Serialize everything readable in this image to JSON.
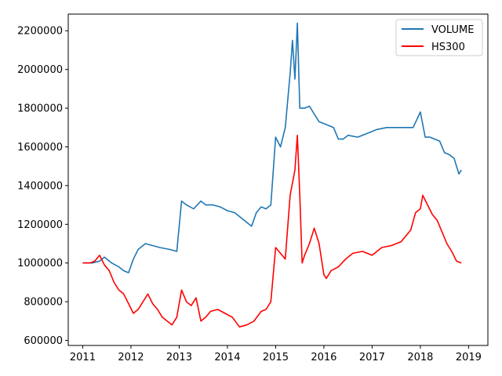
{
  "chart_data": {
    "type": "line",
    "title": "",
    "xlabel": "",
    "ylabel": "",
    "xlim": [
      2010.7,
      2019.4
    ],
    "ylim": [
      574000,
      2286000
    ],
    "x_ticks": [
      2011,
      2012,
      2013,
      2014,
      2015,
      2016,
      2017,
      2018,
      2019
    ],
    "x_tick_labels": [
      "2011",
      "2012",
      "2013",
      "2014",
      "2015",
      "2016",
      "2017",
      "2018",
      "2019"
    ],
    "y_ticks": [
      600000,
      800000,
      1000000,
      1200000,
      1400000,
      1600000,
      1800000,
      2000000,
      2200000
    ],
    "y_tick_labels": [
      "600000",
      "800000",
      "1000000",
      "1200000",
      "1400000",
      "1600000",
      "1800000",
      "2000000",
      "2200000"
    ],
    "legend_position": "top-right",
    "grid": false,
    "series": [
      {
        "name": "VOLUME",
        "color": "#1f77b4",
        "x": [
          2011.0,
          2011.2,
          2011.35,
          2011.45,
          2011.6,
          2011.75,
          2011.85,
          2011.95,
          2012.05,
          2012.15,
          2012.3,
          2012.45,
          2012.6,
          2012.8,
          2012.95,
          2013.05,
          2013.15,
          2013.3,
          2013.45,
          2013.55,
          2013.7,
          2013.85,
          2014.0,
          2014.15,
          2014.35,
          2014.5,
          2014.6,
          2014.7,
          2014.8,
          2014.9,
          2015.0,
          2015.1,
          2015.2,
          2015.3,
          2015.35,
          2015.4,
          2015.45,
          2015.5,
          2015.6,
          2015.7,
          2015.8,
          2015.9,
          2016.0,
          2016.1,
          2016.2,
          2016.3,
          2016.4,
          2016.5,
          2016.7,
          2016.9,
          2017.1,
          2017.3,
          2017.5,
          2017.7,
          2017.85,
          2018.0,
          2018.1,
          2018.2,
          2018.4,
          2018.5,
          2018.6,
          2018.7,
          2018.75,
          2018.8,
          2018.85
        ],
        "y": [
          1000000,
          1000000,
          1010000,
          1030000,
          1000000,
          980000,
          960000,
          950000,
          1020000,
          1070000,
          1100000,
          1090000,
          1080000,
          1070000,
          1060000,
          1320000,
          1300000,
          1280000,
          1320000,
          1300000,
          1300000,
          1290000,
          1270000,
          1260000,
          1220000,
          1190000,
          1260000,
          1290000,
          1280000,
          1300000,
          1650000,
          1600000,
          1700000,
          1980000,
          2150000,
          1950000,
          2240000,
          1800000,
          1800000,
          1810000,
          1770000,
          1730000,
          1720000,
          1710000,
          1700000,
          1640000,
          1640000,
          1660000,
          1650000,
          1670000,
          1690000,
          1700000,
          1700000,
          1700000,
          1700000,
          1780000,
          1650000,
          1650000,
          1630000,
          1570000,
          1560000,
          1540000,
          1500000,
          1460000,
          1480000
        ]
      },
      {
        "name": "HS300",
        "color": "#ff0000",
        "x": [
          2011.0,
          2011.15,
          2011.25,
          2011.35,
          2011.45,
          2011.55,
          2011.65,
          2011.75,
          2011.85,
          2011.95,
          2012.05,
          2012.15,
          2012.25,
          2012.35,
          2012.45,
          2012.55,
          2012.65,
          2012.75,
          2012.85,
          2012.95,
          2013.05,
          2013.15,
          2013.25,
          2013.35,
          2013.45,
          2013.55,
          2013.65,
          2013.8,
          2013.95,
          2014.1,
          2014.25,
          2014.4,
          2014.55,
          2014.7,
          2014.8,
          2014.9,
          2015.0,
          2015.1,
          2015.2,
          2015.3,
          2015.4,
          2015.45,
          2015.5,
          2015.55,
          2015.6,
          2015.7,
          2015.8,
          2015.9,
          2016.0,
          2016.05,
          2016.15,
          2016.3,
          2016.45,
          2016.6,
          2016.8,
          2017.0,
          2017.2,
          2017.4,
          2017.6,
          2017.8,
          2017.9,
          2018.0,
          2018.05,
          2018.15,
          2018.25,
          2018.35,
          2018.45,
          2018.55,
          2018.65,
          2018.75,
          2018.85
        ],
        "y": [
          1000000,
          1000000,
          1010000,
          1040000,
          990000,
          960000,
          900000,
          860000,
          840000,
          790000,
          740000,
          760000,
          800000,
          840000,
          790000,
          760000,
          720000,
          700000,
          680000,
          720000,
          860000,
          800000,
          780000,
          820000,
          700000,
          720000,
          750000,
          760000,
          740000,
          720000,
          670000,
          680000,
          700000,
          750000,
          760000,
          800000,
          1080000,
          1050000,
          1020000,
          1350000,
          1480000,
          1660000,
          1350000,
          1000000,
          1040000,
          1100000,
          1180000,
          1100000,
          940000,
          920000,
          960000,
          980000,
          1020000,
          1050000,
          1060000,
          1040000,
          1080000,
          1090000,
          1110000,
          1170000,
          1260000,
          1280000,
          1350000,
          1300000,
          1250000,
          1220000,
          1160000,
          1100000,
          1060000,
          1010000,
          1000000
        ]
      }
    ]
  }
}
